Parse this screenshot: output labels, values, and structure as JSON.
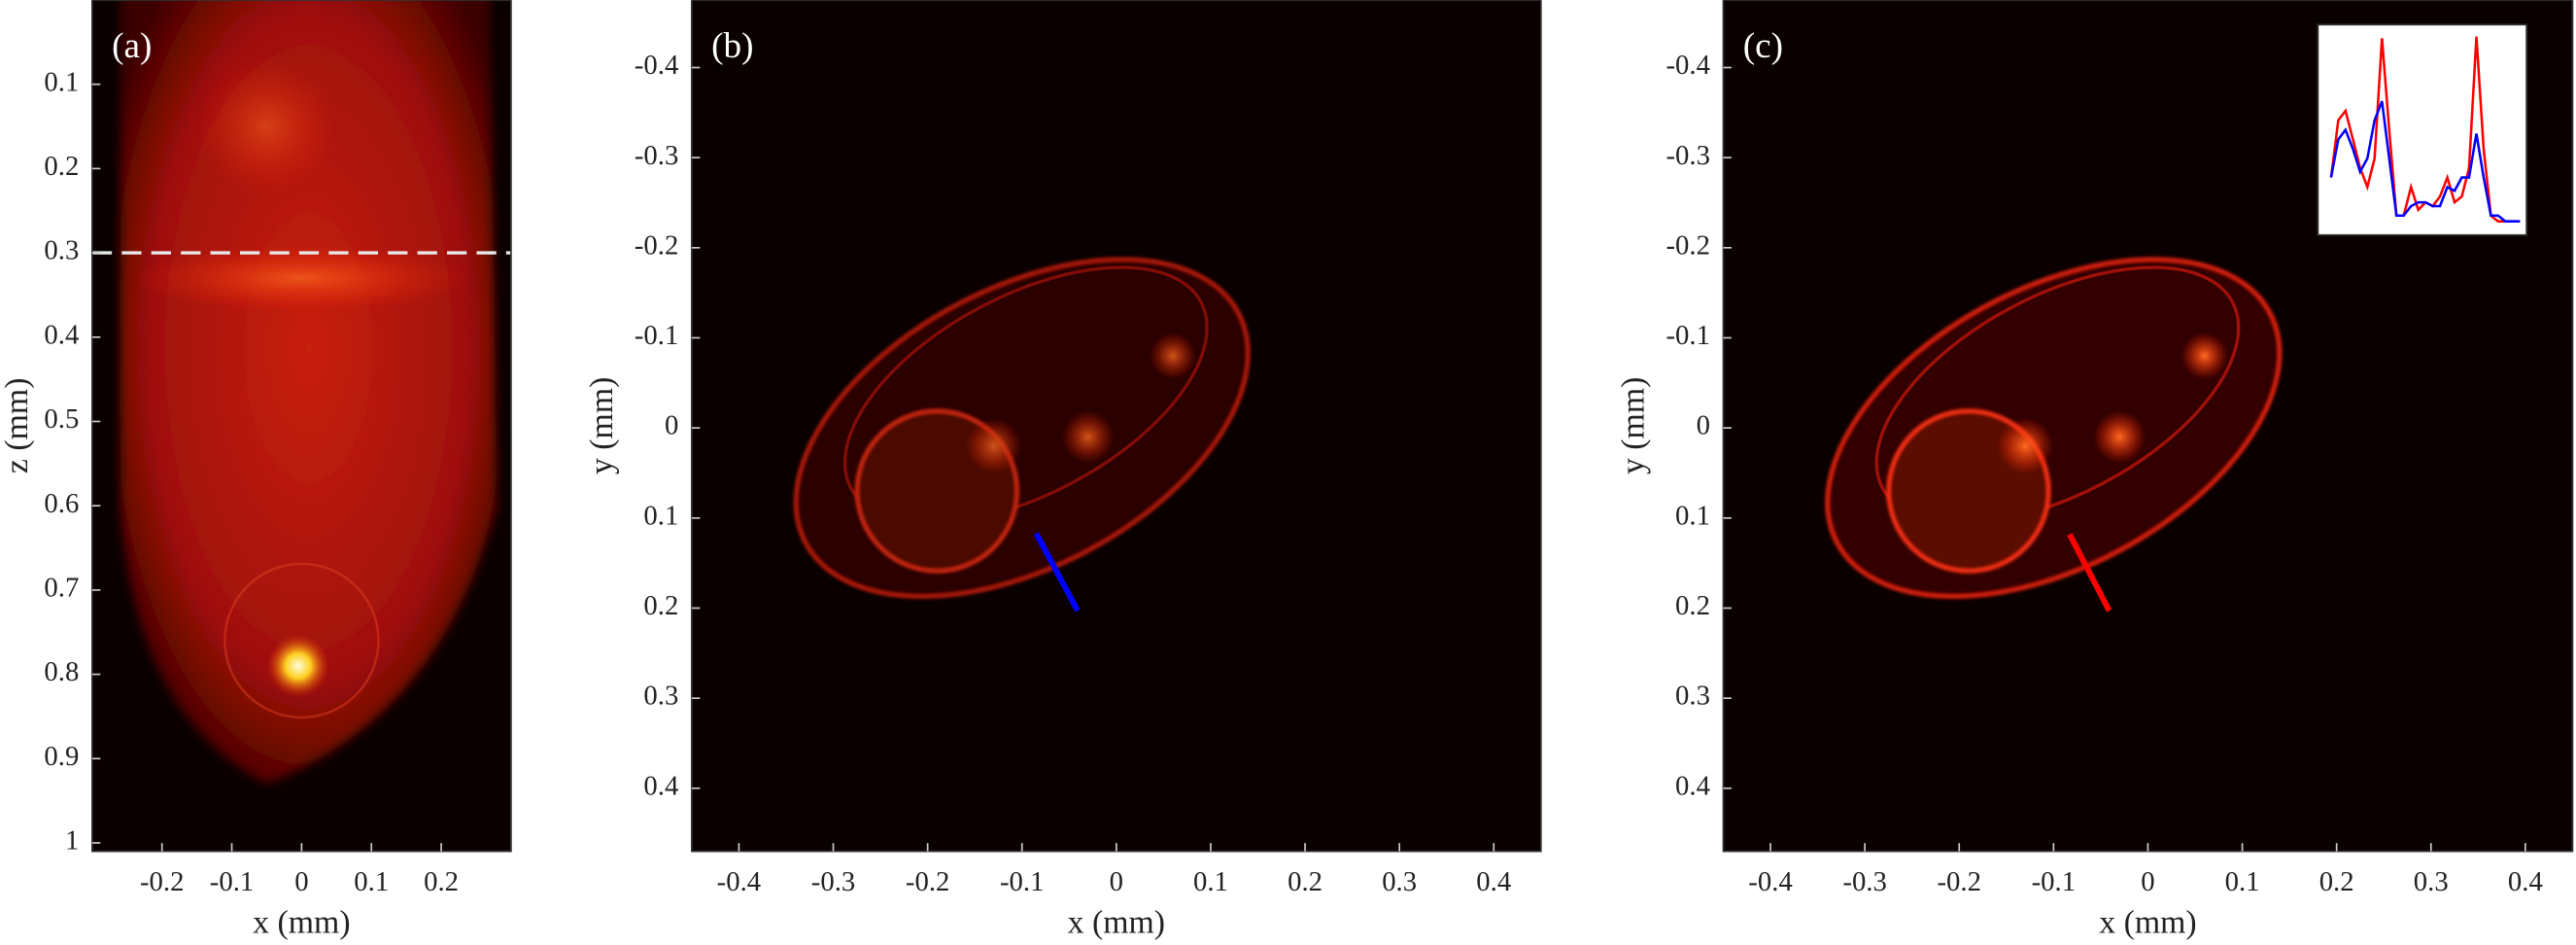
{
  "chart_data": [
    {
      "type": "image",
      "panel_label": "(a)",
      "xlabel": "x (mm)",
      "ylabel": "z (mm)",
      "xlim": [
        -0.3,
        0.3
      ],
      "ylim": [
        0,
        1.01
      ],
      "xticks": [
        -0.2,
        -0.1,
        0,
        0.1,
        0.2
      ],
      "yticks": [
        0.1,
        0.2,
        0.3,
        0.4,
        0.5,
        0.6,
        0.7,
        0.8,
        0.9,
        1
      ],
      "hline": {
        "value": 0.3,
        "color": "#e8e8e8"
      }
    },
    {
      "type": "image",
      "panel_label": "(b)",
      "xlabel": "x (mm)",
      "ylabel": "y (mm)",
      "xlim": [
        -0.45,
        0.45
      ],
      "ylim": [
        -0.475,
        0.47
      ],
      "xticks": [
        -0.4,
        -0.3,
        -0.2,
        -0.1,
        0,
        0.1,
        0.2,
        0.3,
        0.4
      ],
      "yticks": [
        -0.4,
        -0.3,
        -0.2,
        -0.1,
        0,
        0.1,
        0.2,
        0.3,
        0.4
      ],
      "profile": {
        "x": [
          -0.085,
          -0.041
        ],
        "y": [
          0.117,
          0.203
        ],
        "color": "#0000ff"
      }
    },
    {
      "type": "image",
      "panel_label": "(c)",
      "xlabel": "x (mm)",
      "ylabel": "y (mm)",
      "xlim": [
        -0.45,
        0.45
      ],
      "ylim": [
        -0.475,
        0.47
      ],
      "xticks": [
        -0.4,
        -0.3,
        -0.2,
        -0.1,
        0,
        0.1,
        0.2,
        0.3,
        0.4
      ],
      "yticks": [
        -0.4,
        -0.3,
        -0.2,
        -0.1,
        0,
        0.1,
        0.2,
        0.3,
        0.4
      ],
      "profile": {
        "x": [
          -0.083,
          -0.041
        ],
        "y": [
          0.118,
          0.203
        ],
        "color": "#ff0000"
      },
      "inset": {
        "type": "line",
        "ylim": [
          0,
          1
        ],
        "series": [
          {
            "color": "#ff0000",
            "values": [
              0.25,
              0.55,
              0.6,
              0.45,
              0.3,
              0.2,
              0.35,
              0.98,
              0.5,
              0.05,
              0.05,
              0.2,
              0.08,
              0.12,
              0.1,
              0.15,
              0.25,
              0.12,
              0.15,
              0.3,
              0.99,
              0.4,
              0.05,
              0.02,
              0.02,
              0.02,
              0.02
            ]
          },
          {
            "color": "#0000ff",
            "values": [
              0.25,
              0.45,
              0.5,
              0.4,
              0.28,
              0.35,
              0.55,
              0.65,
              0.35,
              0.05,
              0.05,
              0.1,
              0.12,
              0.12,
              0.1,
              0.1,
              0.2,
              0.18,
              0.25,
              0.25,
              0.48,
              0.25,
              0.05,
              0.05,
              0.02,
              0.02,
              0.02
            ]
          }
        ]
      }
    }
  ]
}
